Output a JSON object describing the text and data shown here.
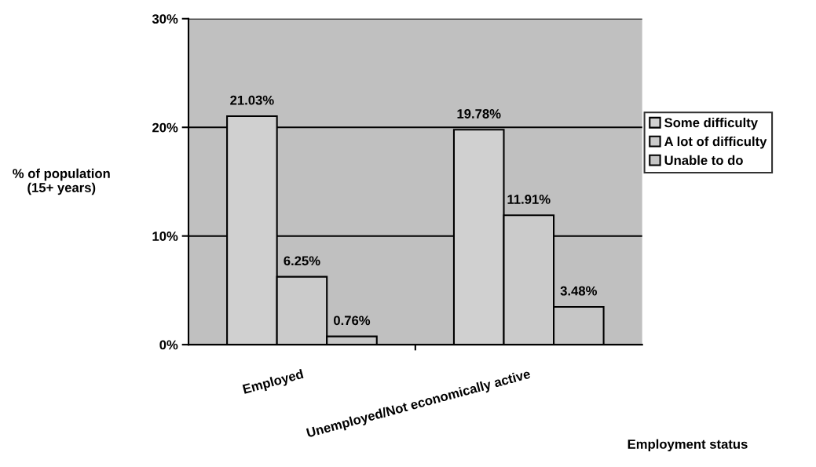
{
  "chart_data": {
    "type": "bar",
    "xlabel": "Employment status",
    "ylabel": "% of population\n(15+ years)",
    "categories": [
      "Employed",
      "Unemployed/Not economically active"
    ],
    "series": [
      {
        "name": "Some difficulty",
        "color": "#d0d0d0",
        "values": [
          21.03,
          19.78
        ],
        "value_labels": [
          "21.03%",
          "19.78%"
        ]
      },
      {
        "name": "A lot of difficulty",
        "color": "#cbcbcb",
        "values": [
          6.25,
          11.91
        ],
        "value_labels": [
          "6.25%",
          "11.91%"
        ]
      },
      {
        "name": "Unable to do",
        "color": "#c6c6c6",
        "values": [
          0.76,
          3.48
        ],
        "value_labels": [
          "0.76%",
          "3.48%"
        ]
      }
    ],
    "ylim": [
      0,
      30
    ],
    "yticks": [
      {
        "value": 0,
        "label": "0%"
      },
      {
        "value": 10,
        "label": "10%"
      },
      {
        "value": 20,
        "label": "20%"
      },
      {
        "value": 30,
        "label": "30%"
      }
    ],
    "grid": "y",
    "legend": "right"
  }
}
